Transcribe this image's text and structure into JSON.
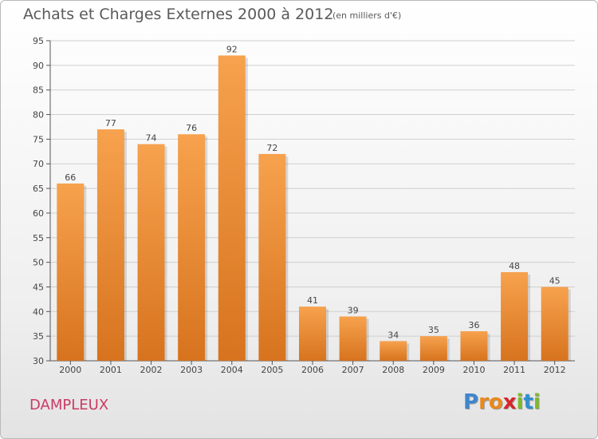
{
  "chart_data": {
    "type": "bar",
    "title": "Achats et Charges Externes 2000 à 2012",
    "subtitle": "(en milliers d'€)",
    "categories": [
      "2000",
      "2001",
      "2002",
      "2003",
      "2004",
      "2005",
      "2006",
      "2007",
      "2008",
      "2009",
      "2010",
      "2011",
      "2012"
    ],
    "values": [
      66,
      77,
      74,
      76,
      92,
      72,
      41,
      39,
      34,
      35,
      36,
      48,
      45
    ],
    "ylim": [
      30,
      95
    ],
    "yticks": [
      30,
      35,
      40,
      45,
      50,
      55,
      60,
      65,
      70,
      75,
      80,
      85,
      90,
      95
    ],
    "xlabel": "",
    "ylabel": "",
    "grid": true,
    "bar_color_top": "#f7a24e",
    "bar_color_bottom": "#d7731e"
  },
  "commune": "DAMPLEUX",
  "logo": {
    "letters": [
      "P",
      "r",
      "o",
      "x",
      "i",
      "t",
      "i"
    ],
    "colors": [
      "#3d86cf",
      "#e9891c",
      "#e9891c",
      "#d7262b",
      "#7fb92c",
      "#2f8fcf",
      "#7fb92c"
    ]
  }
}
